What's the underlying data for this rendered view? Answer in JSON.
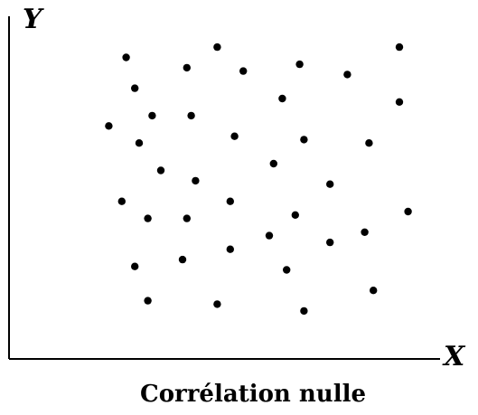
{
  "chart_data": {
    "type": "scatter",
    "title": "Corrélation nulle",
    "xlabel": "X",
    "ylabel": "Y",
    "xlim": [
      0,
      100
    ],
    "ylim": [
      0,
      100
    ],
    "grid": false,
    "legend": "none",
    "points": [
      {
        "x": 27,
        "y": 88
      },
      {
        "x": 41,
        "y": 85
      },
      {
        "x": 48,
        "y": 91
      },
      {
        "x": 54,
        "y": 84
      },
      {
        "x": 67,
        "y": 86
      },
      {
        "x": 78,
        "y": 83
      },
      {
        "x": 90,
        "y": 91
      },
      {
        "x": 29,
        "y": 79
      },
      {
        "x": 63,
        "y": 76
      },
      {
        "x": 90,
        "y": 75
      },
      {
        "x": 33,
        "y": 71
      },
      {
        "x": 42,
        "y": 71
      },
      {
        "x": 23,
        "y": 68
      },
      {
        "x": 30,
        "y": 63
      },
      {
        "x": 52,
        "y": 65
      },
      {
        "x": 68,
        "y": 64
      },
      {
        "x": 83,
        "y": 63
      },
      {
        "x": 35,
        "y": 55
      },
      {
        "x": 61,
        "y": 57
      },
      {
        "x": 43,
        "y": 52
      },
      {
        "x": 74,
        "y": 51
      },
      {
        "x": 26,
        "y": 46
      },
      {
        "x": 51,
        "y": 46
      },
      {
        "x": 32,
        "y": 41
      },
      {
        "x": 41,
        "y": 41
      },
      {
        "x": 66,
        "y": 42
      },
      {
        "x": 92,
        "y": 43
      },
      {
        "x": 60,
        "y": 36
      },
      {
        "x": 82,
        "y": 37
      },
      {
        "x": 74,
        "y": 34
      },
      {
        "x": 51,
        "y": 32
      },
      {
        "x": 40,
        "y": 29
      },
      {
        "x": 29,
        "y": 27
      },
      {
        "x": 64,
        "y": 26
      },
      {
        "x": 84,
        "y": 20
      },
      {
        "x": 32,
        "y": 17
      },
      {
        "x": 48,
        "y": 16
      },
      {
        "x": 68,
        "y": 14
      }
    ]
  }
}
